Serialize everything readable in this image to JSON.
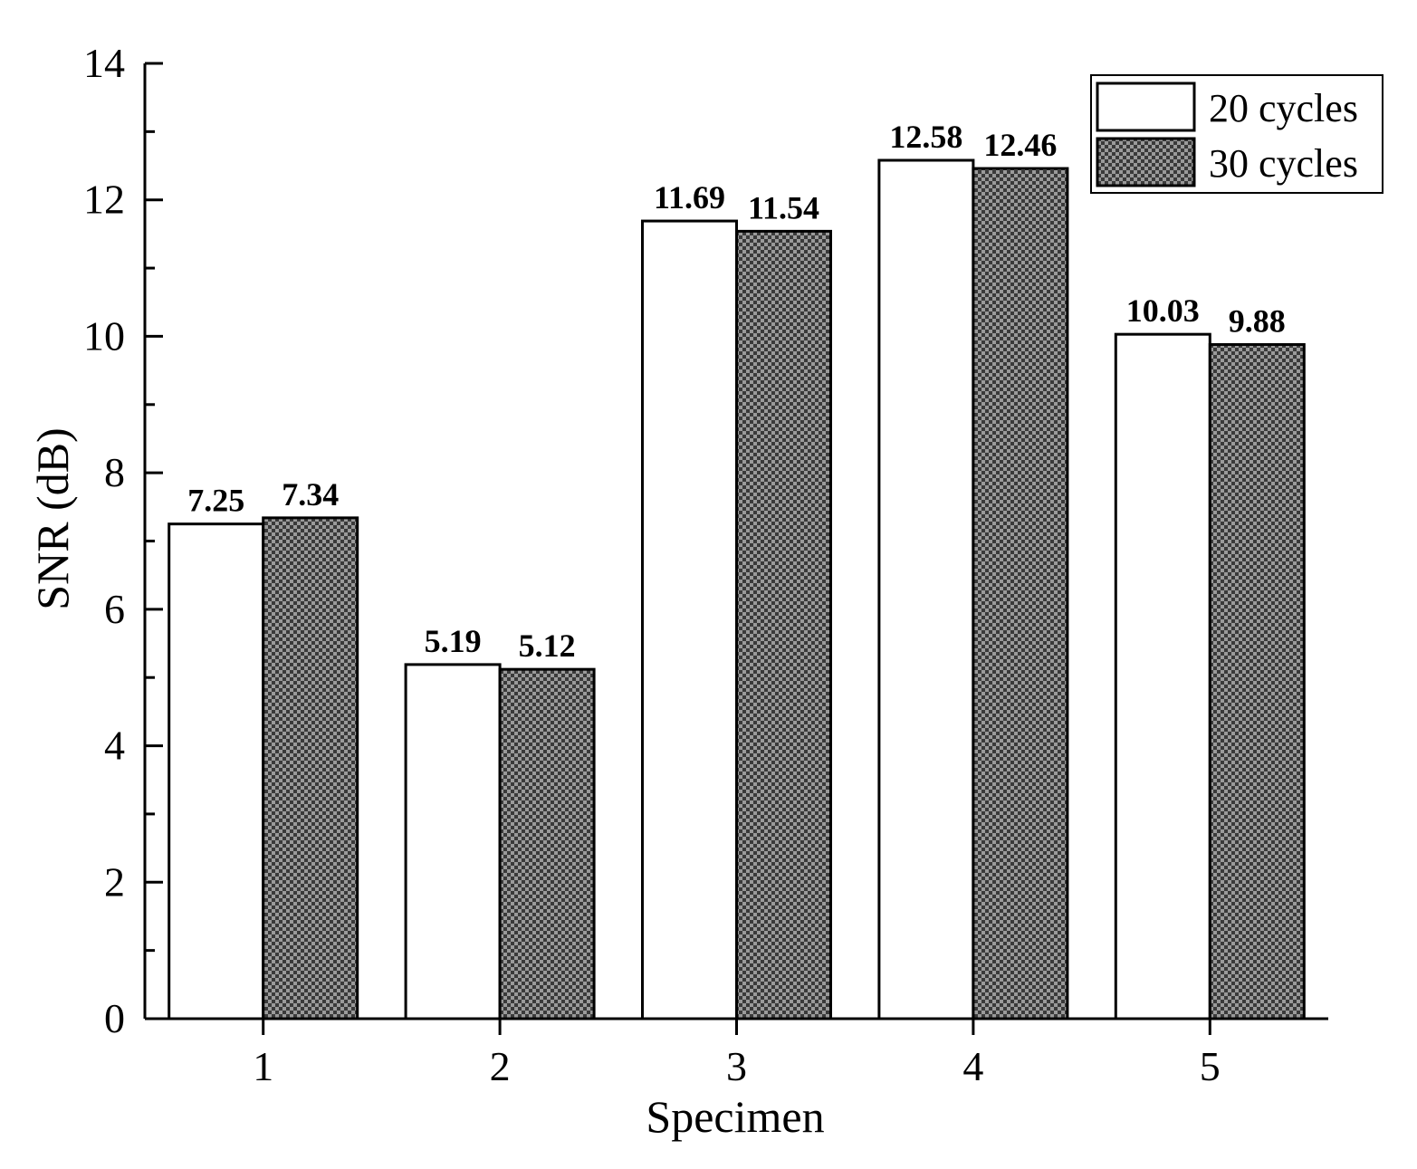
{
  "chart_data": {
    "type": "bar",
    "title": "",
    "xlabel": "Specimen",
    "ylabel": "SNR (dB)",
    "categories": [
      "1",
      "2",
      "3",
      "4",
      "5"
    ],
    "ylim": [
      0,
      14
    ],
    "yticks": [
      0,
      2,
      4,
      6,
      8,
      10,
      12,
      14
    ],
    "series": [
      {
        "name": "20 cycles",
        "values": [
          7.25,
          5.19,
          11.69,
          12.58,
          10.03
        ],
        "labels": [
          "7.25",
          "5.19",
          "11.69",
          "12.58",
          "10.03"
        ],
        "fill": "#ffffff"
      },
      {
        "name": "30 cycles",
        "values": [
          7.34,
          5.12,
          11.54,
          12.46,
          9.88
        ],
        "labels": [
          "7.34",
          "5.12",
          "11.54",
          "12.46",
          "9.88"
        ],
        "fill": "#5a5a5a"
      }
    ],
    "legend": {
      "position": "top-right"
    },
    "grid": false
  }
}
